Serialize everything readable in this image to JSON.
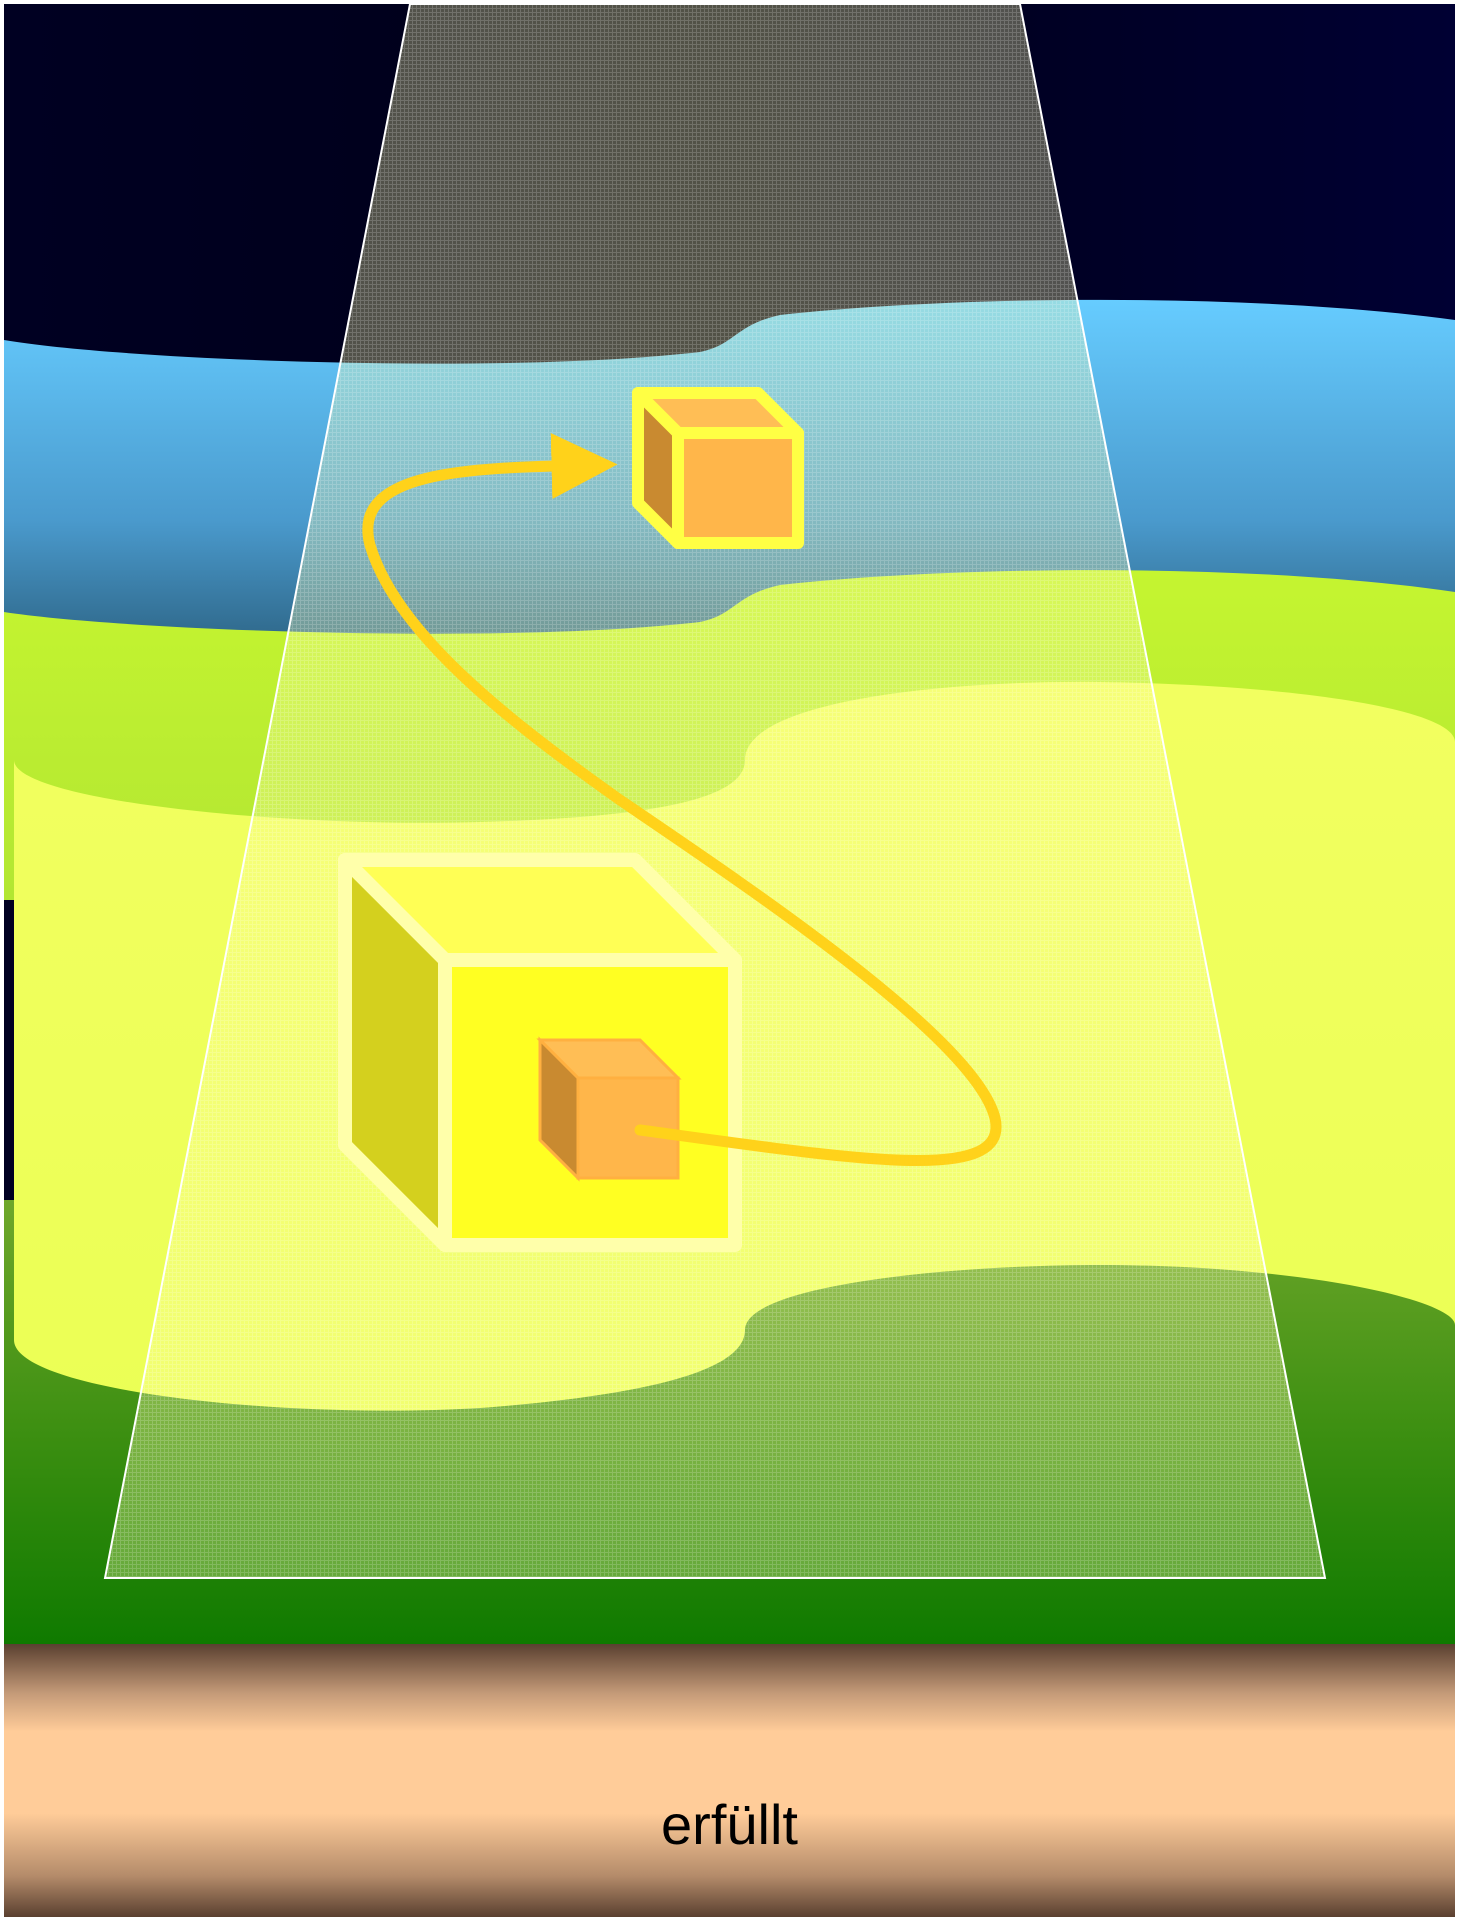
{
  "caption": "erfüllt",
  "colors": {
    "sky_top": "#000022",
    "water_light": "#66CCFF",
    "water_dark": "#22506A",
    "meadow_light": "#C5F530",
    "meadow_yellow": "#EEFF5A",
    "grass_dark": "#0F7A00",
    "soil_light": "#FFCC99",
    "soil_dark": "#5A4030",
    "beam_fill": "#FFFFAA",
    "big_cube_front": "#FFFF22",
    "big_cube_side": "#D4D01E",
    "small_cube_front": "#FFB64A",
    "small_cube_side": "#C98A30",
    "cube_outline": "#FFFF66",
    "arrow": "#FFD21A"
  }
}
